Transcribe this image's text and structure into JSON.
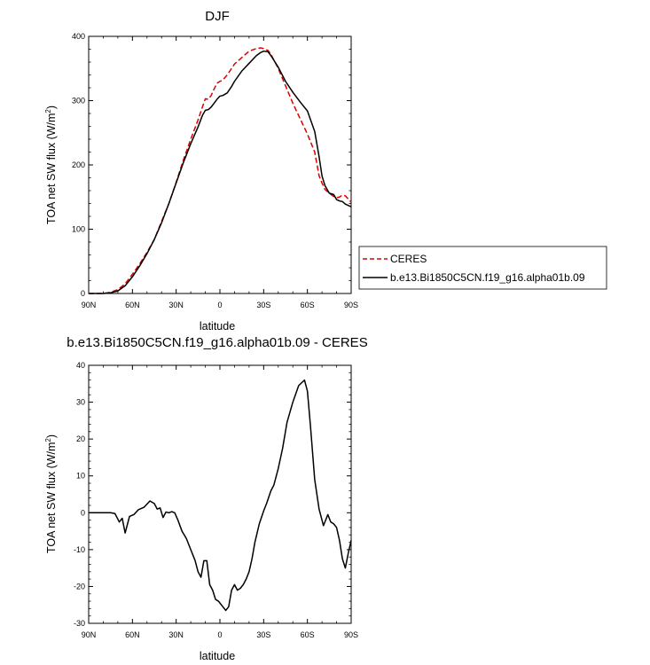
{
  "chart_data": [
    {
      "type": "line",
      "title": "DJF",
      "xlabel": "latitude",
      "ylabel": "TOA net SW flux (W/m",
      "ylabel_sup": "2",
      "ylabel_close": ")",
      "xlim": [
        90,
        -90
      ],
      "ylim": [
        0,
        400
      ],
      "xticks": [
        90,
        60,
        30,
        0,
        -30,
        -60,
        -90
      ],
      "xtick_labels": [
        "90N",
        "60N",
        "30N",
        "0",
        "30S",
        "60S",
        "90S"
      ],
      "yticks": [
        0,
        100,
        200,
        300,
        400
      ],
      "ytick_labels": [
        "0",
        "100",
        "200",
        "300",
        "400"
      ],
      "legend_position": "right",
      "series": [
        {
          "name": "CERES",
          "color": "#dd0000",
          "dash": true,
          "x": [
            90,
            85,
            80,
            75,
            70,
            65,
            60,
            55,
            50,
            45,
            40,
            35,
            30,
            25,
            20,
            15,
            12,
            10,
            8,
            6,
            4,
            2,
            0,
            -2,
            -5,
            -8,
            -10,
            -15,
            -20,
            -25,
            -28,
            -30,
            -33,
            -35,
            -40,
            -45,
            -50,
            -55,
            -60,
            -65,
            -68,
            -70,
            -72,
            -75,
            -78,
            -80,
            -82,
            -84,
            -86,
            -88,
            -90
          ],
          "y": [
            0,
            0,
            0,
            2,
            6,
            15,
            30,
            46,
            64,
            84,
            112,
            140,
            173,
            208,
            240,
            270,
            290,
            303,
            302,
            308,
            318,
            327,
            330,
            332,
            340,
            350,
            357,
            367,
            377,
            381,
            382,
            381,
            378,
            372,
            350,
            323,
            296,
            272,
            248,
            220,
            183,
            172,
            162,
            156,
            151,
            149,
            150,
            153,
            152,
            147,
            142
          ]
        },
        {
          "name": "b.e13.Bi1850C5CN.f19_g16.alpha01b.09",
          "color": "#000000",
          "dash": false,
          "x": [
            90,
            85,
            80,
            75,
            70,
            65,
            60,
            55,
            50,
            45,
            40,
            35,
            30,
            25,
            20,
            15,
            12,
            10,
            8,
            6,
            4,
            2,
            0,
            -2,
            -5,
            -8,
            -10,
            -15,
            -20,
            -25,
            -28,
            -30,
            -33,
            -35,
            -40,
            -45,
            -50,
            -55,
            -60,
            -65,
            -68,
            -70,
            -72,
            -75,
            -78,
            -80,
            -82,
            -84,
            -86,
            -88,
            -90
          ],
          "y": [
            0,
            0,
            0,
            1,
            4,
            12,
            26,
            43,
            62,
            84,
            110,
            140,
            172,
            204,
            233,
            259,
            277,
            285,
            286,
            290,
            296,
            302,
            307,
            308,
            312,
            322,
            330,
            346,
            358,
            370,
            375,
            377,
            376,
            370,
            352,
            330,
            313,
            298,
            284,
            252,
            213,
            183,
            168,
            156,
            154,
            146,
            144,
            143,
            139,
            137,
            135
          ]
        }
      ]
    },
    {
      "type": "line",
      "title": "b.e13.Bi1850C5CN.f19_g16.alpha01b.09 - CERES",
      "xlabel": "latitude",
      "ylabel": "TOA net SW flux (W/m",
      "ylabel_sup": "2",
      "ylabel_close": ")",
      "xlim": [
        90,
        -90
      ],
      "ylim": [
        -30,
        40
      ],
      "xticks": [
        90,
        60,
        30,
        0,
        -30,
        -60,
        -90
      ],
      "xtick_labels": [
        "90N",
        "60N",
        "30N",
        "0",
        "30S",
        "60S",
        "90S"
      ],
      "yticks": [
        -30,
        -20,
        -10,
        0,
        10,
        20,
        30,
        40
      ],
      "ytick_labels": [
        "-30",
        "-20",
        "-10",
        "0",
        "10",
        "20",
        "30",
        "40"
      ],
      "series": [
        {
          "color": "#000000",
          "dash": false,
          "x": [
            90,
            85,
            80,
            75,
            72,
            69,
            67,
            65,
            62,
            59,
            56,
            52,
            48,
            45,
            43,
            41,
            39,
            37,
            35,
            33,
            31,
            29,
            26,
            23,
            20,
            17,
            15,
            13,
            11,
            9,
            7,
            5,
            3,
            1,
            0,
            -2,
            -4,
            -6,
            -8,
            -10,
            -12,
            -14,
            -16,
            -18,
            -20,
            -22,
            -24,
            -27,
            -30,
            -32,
            -35,
            -37,
            -40,
            -43,
            -46,
            -50,
            -54,
            -58,
            -60,
            -62,
            -65,
            -68,
            -71,
            -74,
            -76,
            -78,
            -80,
            -82,
            -84,
            -86,
            -88,
            -90
          ],
          "y": [
            0,
            0,
            0,
            0,
            -0.2,
            -2.5,
            -1.5,
            -5.5,
            -1,
            -0.5,
            0.8,
            1.5,
            3.2,
            2.5,
            1,
            1.3,
            -1.3,
            0.2,
            0,
            0.3,
            0,
            -1.8,
            -5,
            -7,
            -10,
            -13,
            -16,
            -17.5,
            -13,
            -13,
            -19.5,
            -21,
            -23.5,
            -24,
            -24.5,
            -25.5,
            -26.5,
            -25.5,
            -21,
            -19.5,
            -21,
            -20.5,
            -19.5,
            -18,
            -16,
            -12.5,
            -8,
            -3,
            0.5,
            2.5,
            6,
            7.5,
            12,
            17.5,
            24.5,
            30,
            34.5,
            36,
            33,
            24,
            9,
            1,
            -3.5,
            -0.5,
            -2.5,
            -3,
            -4,
            -7.5,
            -12.5,
            -15,
            -11,
            -7.5
          ]
        }
      ]
    }
  ]
}
